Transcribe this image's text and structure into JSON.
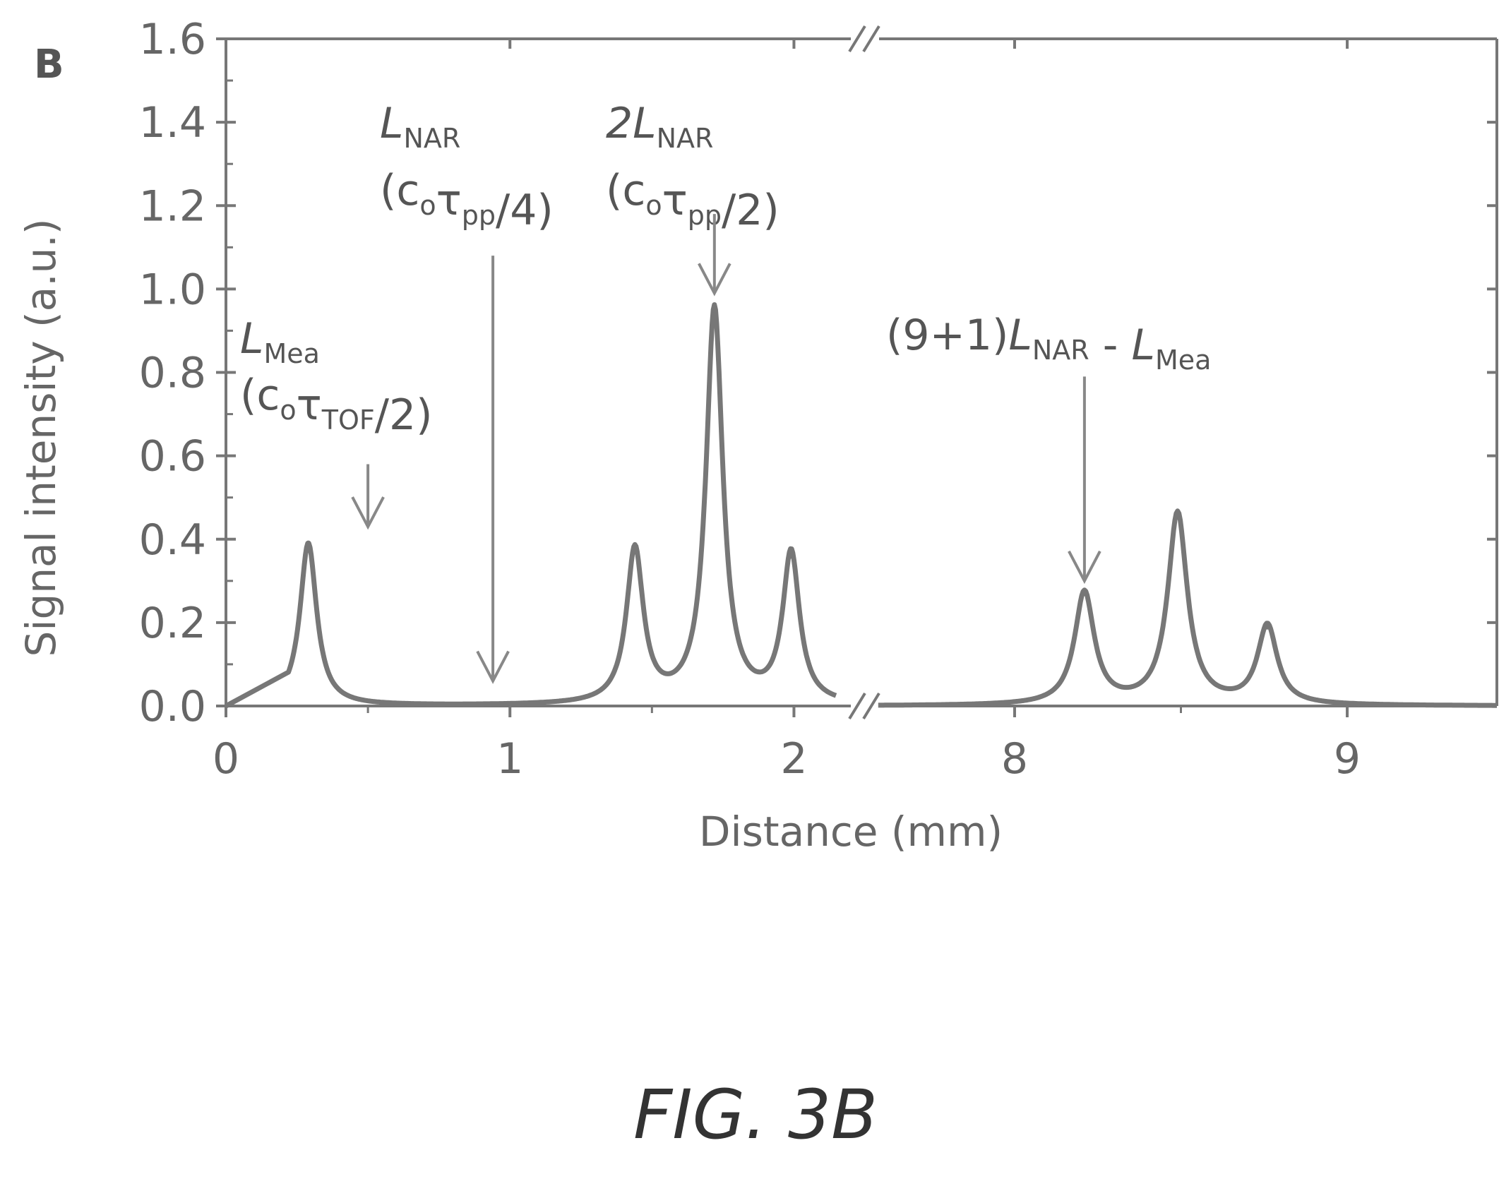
{
  "figure": {
    "panel_label": "B",
    "caption": "FIG. 3B"
  },
  "chart_data": {
    "type": "line",
    "xlabel": "Distance (mm)",
    "ylabel": "Signal intensity (a.u.)",
    "ylim": [
      0,
      1.6
    ],
    "y_ticks": [
      "0.0",
      "0.2",
      "0.4",
      "0.6",
      "0.8",
      "1.0",
      "1.2",
      "1.4",
      "1.6"
    ],
    "broken_x_axis": true,
    "segments": [
      {
        "xlim": [
          0,
          2.25
        ],
        "x_ticks": [
          "0",
          "1",
          "2"
        ],
        "x_tick_values": [
          0,
          1,
          2
        ]
      },
      {
        "xlim": [
          7.55,
          9.45
        ],
        "x_ticks": [
          "8",
          "9"
        ],
        "x_tick_values": [
          8,
          9
        ]
      }
    ],
    "grid": false,
    "series": [
      {
        "peaks": [
          {
            "x": 0.29,
            "y": 0.39
          },
          {
            "x": 1.44,
            "y": 0.37
          },
          {
            "x": 1.72,
            "y": 0.95
          },
          {
            "x": 1.99,
            "y": 0.36
          },
          {
            "x": 8.21,
            "y": 0.27
          },
          {
            "x": 8.49,
            "y": 0.46
          },
          {
            "x": 8.76,
            "y": 0.19
          }
        ]
      }
    ],
    "annotations": [
      {
        "id": "lmea",
        "line1": [
          [
            "L",
            "it"
          ],
          [
            "Mea",
            "sub"
          ]
        ],
        "line2": [
          [
            "(c",
            ""
          ],
          [
            "o",
            "sub"
          ],
          [
            "τ",
            ""
          ],
          [
            "TOF",
            "sub"
          ],
          [
            "/2)",
            ""
          ]
        ],
        "arrow_x": 0.5,
        "arrow_y_top": 0.58,
        "arrow_y_bottom": 0.43
      },
      {
        "id": "lnar",
        "line1": [
          [
            "L",
            "it"
          ],
          [
            "NAR",
            "sub"
          ]
        ],
        "line2": [
          [
            "(c",
            ""
          ],
          [
            "o",
            "sub"
          ],
          [
            "τ",
            ""
          ],
          [
            "pp",
            "sub"
          ],
          [
            "/4)",
            ""
          ]
        ],
        "arrow_x": 0.94,
        "arrow_y_top": 1.08,
        "arrow_y_bottom": 0.06
      },
      {
        "id": "2lnar",
        "line1": [
          [
            "2L",
            "it"
          ],
          [
            "NAR",
            "sub"
          ]
        ],
        "line2": [
          [
            "(c",
            ""
          ],
          [
            "o",
            "sub"
          ],
          [
            "τ",
            ""
          ],
          [
            "pp",
            "sub"
          ],
          [
            "/2)",
            ""
          ]
        ],
        "arrow_x": 1.72,
        "arrow_y_top": 1.18,
        "arrow_y_bottom": 0.99
      },
      {
        "id": "9p1",
        "line1": [
          [
            "(9+1)",
            ""
          ],
          [
            "L",
            "it"
          ],
          [
            "NAR",
            "sub"
          ],
          [
            " - ",
            ""
          ],
          [
            "L",
            "it"
          ],
          [
            "Mea",
            "sub"
          ]
        ],
        "line2": [],
        "arrow_x": 8.21,
        "arrow_y_top": 0.79,
        "arrow_y_bottom": 0.3
      }
    ],
    "colors": {
      "line": "#777777",
      "axis": "#777777",
      "arrow": "#888888"
    }
  }
}
